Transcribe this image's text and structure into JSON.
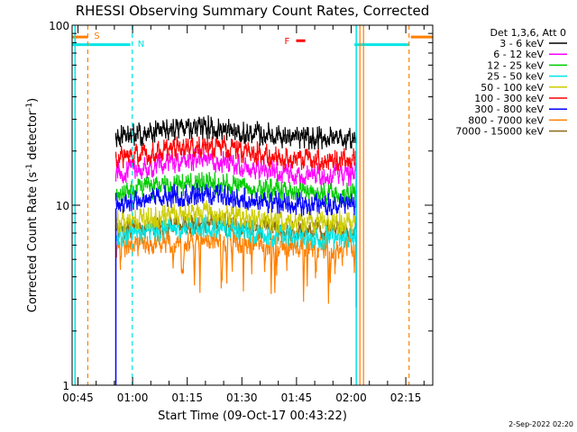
{
  "chart_data": {
    "type": "line",
    "title": "RHESSI Observing Summary Count Rates, Corrected",
    "xlabel": "Start Time (09-Oct-17 00:43:22)",
    "ylabel_parts": [
      "Corrected Count Rate (s",
      "-1",
      " detector",
      "-1",
      ")"
    ],
    "yscale": "log",
    "ylim": [
      1,
      100
    ],
    "xlim_minutes": [
      0,
      99
    ],
    "x_ticks": [
      {
        "minute": 1.6,
        "label": "00:45"
      },
      {
        "minute": 16.6,
        "label": "01:00"
      },
      {
        "minute": 31.6,
        "label": "01:15"
      },
      {
        "minute": 46.6,
        "label": "01:30"
      },
      {
        "minute": 61.6,
        "label": "01:45"
      },
      {
        "minute": 76.6,
        "label": "02:00"
      },
      {
        "minute": 91.6,
        "label": "02:15"
      }
    ],
    "y_ticks": [
      {
        "value": 1,
        "label": "1"
      },
      {
        "value": 10,
        "label": "10"
      },
      {
        "value": 100,
        "label": "100"
      }
    ],
    "data_window_minutes": [
      12,
      78
    ],
    "legend": {
      "header": "Det 1,3,6, Att 0",
      "placement": "right"
    },
    "series": [
      {
        "name": "3 - 6 keV",
        "color": "#000000",
        "base": 22.5,
        "bump": 1.15
      },
      {
        "name": "6 - 12 keV",
        "color": "#ff00ff",
        "base": 14.2,
        "bump": 1.2
      },
      {
        "name": "12 - 25 keV",
        "color": "#00cc00",
        "base": 11.2,
        "bump": 1.12
      },
      {
        "name": "25 - 50 keV",
        "color": "#00e5e5",
        "base": 6.3,
        "bump": 1.15
      },
      {
        "name": "50 - 100 keV",
        "color": "#cccc00",
        "base": 7.6,
        "bump": 1.15
      },
      {
        "name": "100 - 300 keV",
        "color": "#ff0000",
        "base": 17.2,
        "bump": 1.18
      },
      {
        "name": "300 - 800 keV",
        "color": "#0000ff",
        "base": 9.6,
        "bump": 1.15
      },
      {
        "name": "800 - 7000 keV",
        "color": "#ff8000",
        "base": 5.6,
        "bump": 1.1
      },
      {
        "name": "7000 - 15000 keV",
        "color": "#8b6914",
        "base": 6.9,
        "bump": 1.1
      }
    ],
    "flags": [
      {
        "label": "S",
        "color": "#ff7f00"
      },
      {
        "label": "N",
        "color": "#00e5e5"
      },
      {
        "label": "F",
        "color": "#ff0000"
      }
    ],
    "saa_intervals_minutes": [
      [
        -1,
        4.3
      ],
      [
        93,
        99
      ]
    ],
    "night_intervals_minutes": [
      [
        -1,
        16
      ],
      [
        77.5,
        92.5
      ]
    ],
    "saa_solid_lines_minutes": [
      79,
      80
    ],
    "saa_dashed_lines_minutes": [
      4.3,
      92.5
    ],
    "night_solid_lines_minutes": [
      0.8,
      78
    ],
    "night_dashed_lines_minutes": [
      16.5
    ],
    "flare_marker": {
      "start_minute": 61.5,
      "end_minute": 64,
      "value": 82
    }
  },
  "footer": {
    "timestamp": "2-Sep-2022 02:20"
  }
}
